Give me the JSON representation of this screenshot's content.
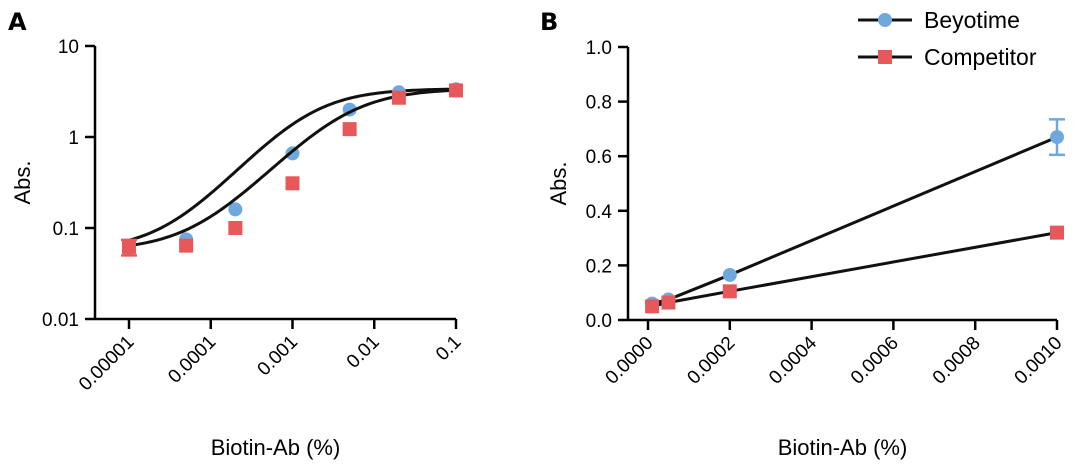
{
  "colors": {
    "beyotime": "#6FA8DC",
    "competitor": "#E8585A",
    "line": "#111111"
  },
  "legend": {
    "placement": "top-right",
    "items": [
      {
        "label": "Beyotime",
        "marker": "circle",
        "color": "#6FA8DC"
      },
      {
        "label": "Competitor",
        "marker": "square",
        "color": "#E8585A"
      }
    ]
  },
  "chart_data": [
    {
      "panel": "A",
      "type": "scatter",
      "title": "",
      "xlabel": "Biotin-Ab (%)",
      "ylabel": "Abs.",
      "xscale": "log",
      "yscale": "log",
      "xlim": [
        1e-05,
        0.1
      ],
      "ylim": [
        0.01,
        10
      ],
      "x_ticks": [
        "0.00001",
        "0.0001",
        "0.001",
        "0.01",
        "0.1"
      ],
      "x_tick_values": [
        1e-05,
        0.0001,
        0.001,
        0.01,
        0.1
      ],
      "y_ticks": [
        "0.01",
        "0.1",
        "1",
        "10"
      ],
      "y_tick_values": [
        0.01,
        0.1,
        1,
        10
      ],
      "fit": "sigmoidal",
      "series": [
        {
          "name": "Beyotime",
          "marker": "circle",
          "x": [
            1e-05,
            5e-05,
            0.0002,
            0.001,
            0.005,
            0.02,
            0.1
          ],
          "y": [
            0.058,
            0.075,
            0.16,
            0.66,
            2.0,
            3.1,
            3.35
          ],
          "err": [
            0.005,
            0.004,
            0.01,
            0.03,
            0.1,
            0.1,
            0.1
          ],
          "fit_params": {
            "bottom": 0.056,
            "top": 3.4,
            "ec50": 0.0015,
            "hill": 1.05
          }
        },
        {
          "name": "Competitor",
          "marker": "square",
          "x": [
            1e-05,
            5e-05,
            0.0002,
            0.001,
            0.005,
            0.02,
            0.1
          ],
          "y": [
            0.062,
            0.064,
            0.1,
            0.31,
            1.22,
            2.7,
            3.25
          ],
          "err": [
            0.012,
            0.004,
            0.006,
            0.02,
            0.06,
            0.1,
            0.1
          ],
          "fit_params": {
            "bottom": 0.056,
            "top": 3.4,
            "ec50": 0.0042,
            "hill": 1.0
          }
        }
      ]
    },
    {
      "panel": "B",
      "type": "line",
      "title": "",
      "xlabel": "Biotin-Ab (%)",
      "ylabel": "Abs.",
      "xlim": [
        0,
        0.001
      ],
      "ylim": [
        0,
        1.0
      ],
      "x_ticks": [
        "0.0000",
        "0.0002",
        "0.0004",
        "0.0006",
        "0.0008",
        "0.0010"
      ],
      "x_tick_values": [
        0,
        0.0002,
        0.0004,
        0.0006,
        0.0008,
        0.001
      ],
      "y_ticks": [
        "0.0",
        "0.2",
        "0.4",
        "0.6",
        "0.8",
        "1.0"
      ],
      "y_tick_values": [
        0,
        0.2,
        0.4,
        0.6,
        0.8,
        1.0
      ],
      "series": [
        {
          "name": "Beyotime",
          "marker": "circle",
          "x": [
            1e-05,
            5e-05,
            0.0002,
            0.001
          ],
          "y": [
            0.06,
            0.075,
            0.165,
            0.67
          ],
          "err": [
            0.005,
            0.004,
            0.008,
            0.065
          ]
        },
        {
          "name": "Competitor",
          "marker": "square",
          "x": [
            1e-05,
            5e-05,
            0.0002,
            0.001
          ],
          "y": [
            0.05,
            0.064,
            0.105,
            0.32
          ],
          "err": [
            0.008,
            0.004,
            0.005,
            0.01
          ]
        }
      ]
    }
  ]
}
